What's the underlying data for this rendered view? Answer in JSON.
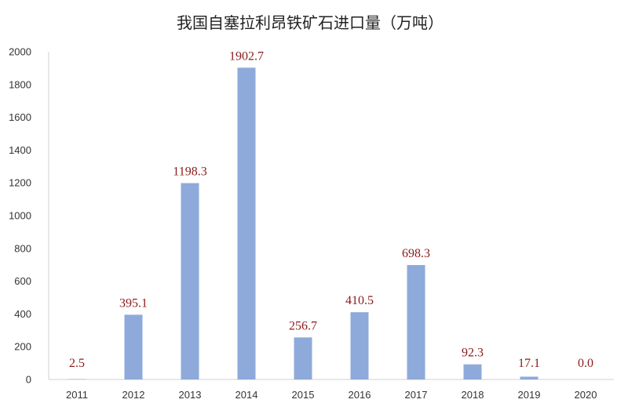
{
  "chart_data": {
    "type": "bar",
    "title": "我国自塞拉利昂铁矿石进口量（万吨）",
    "categories": [
      "2011",
      "2012",
      "2013",
      "2014",
      "2015",
      "2016",
      "2017",
      "2018",
      "2019",
      "2020"
    ],
    "values": [
      2.5,
      395.1,
      1198.3,
      1902.7,
      256.7,
      410.5,
      698.3,
      92.3,
      17.1,
      0.0
    ],
    "data_labels": [
      "2.5",
      "395.1",
      "1198.3",
      "1902.7",
      "256.7",
      "410.5",
      "698.3",
      "92.3",
      "17.1",
      "0.0"
    ],
    "y_ticks": [
      "0",
      "200",
      "400",
      "600",
      "800",
      "1000",
      "1200",
      "1400",
      "1600",
      "1800",
      "2000"
    ],
    "ylim": [
      0,
      2000
    ],
    "xlabel": "",
    "ylabel": "",
    "grid": false,
    "legend": "none",
    "colors": {
      "bar": "#8eaadb",
      "label": "#8b1a1a",
      "axis": "#d0d0d0"
    }
  }
}
